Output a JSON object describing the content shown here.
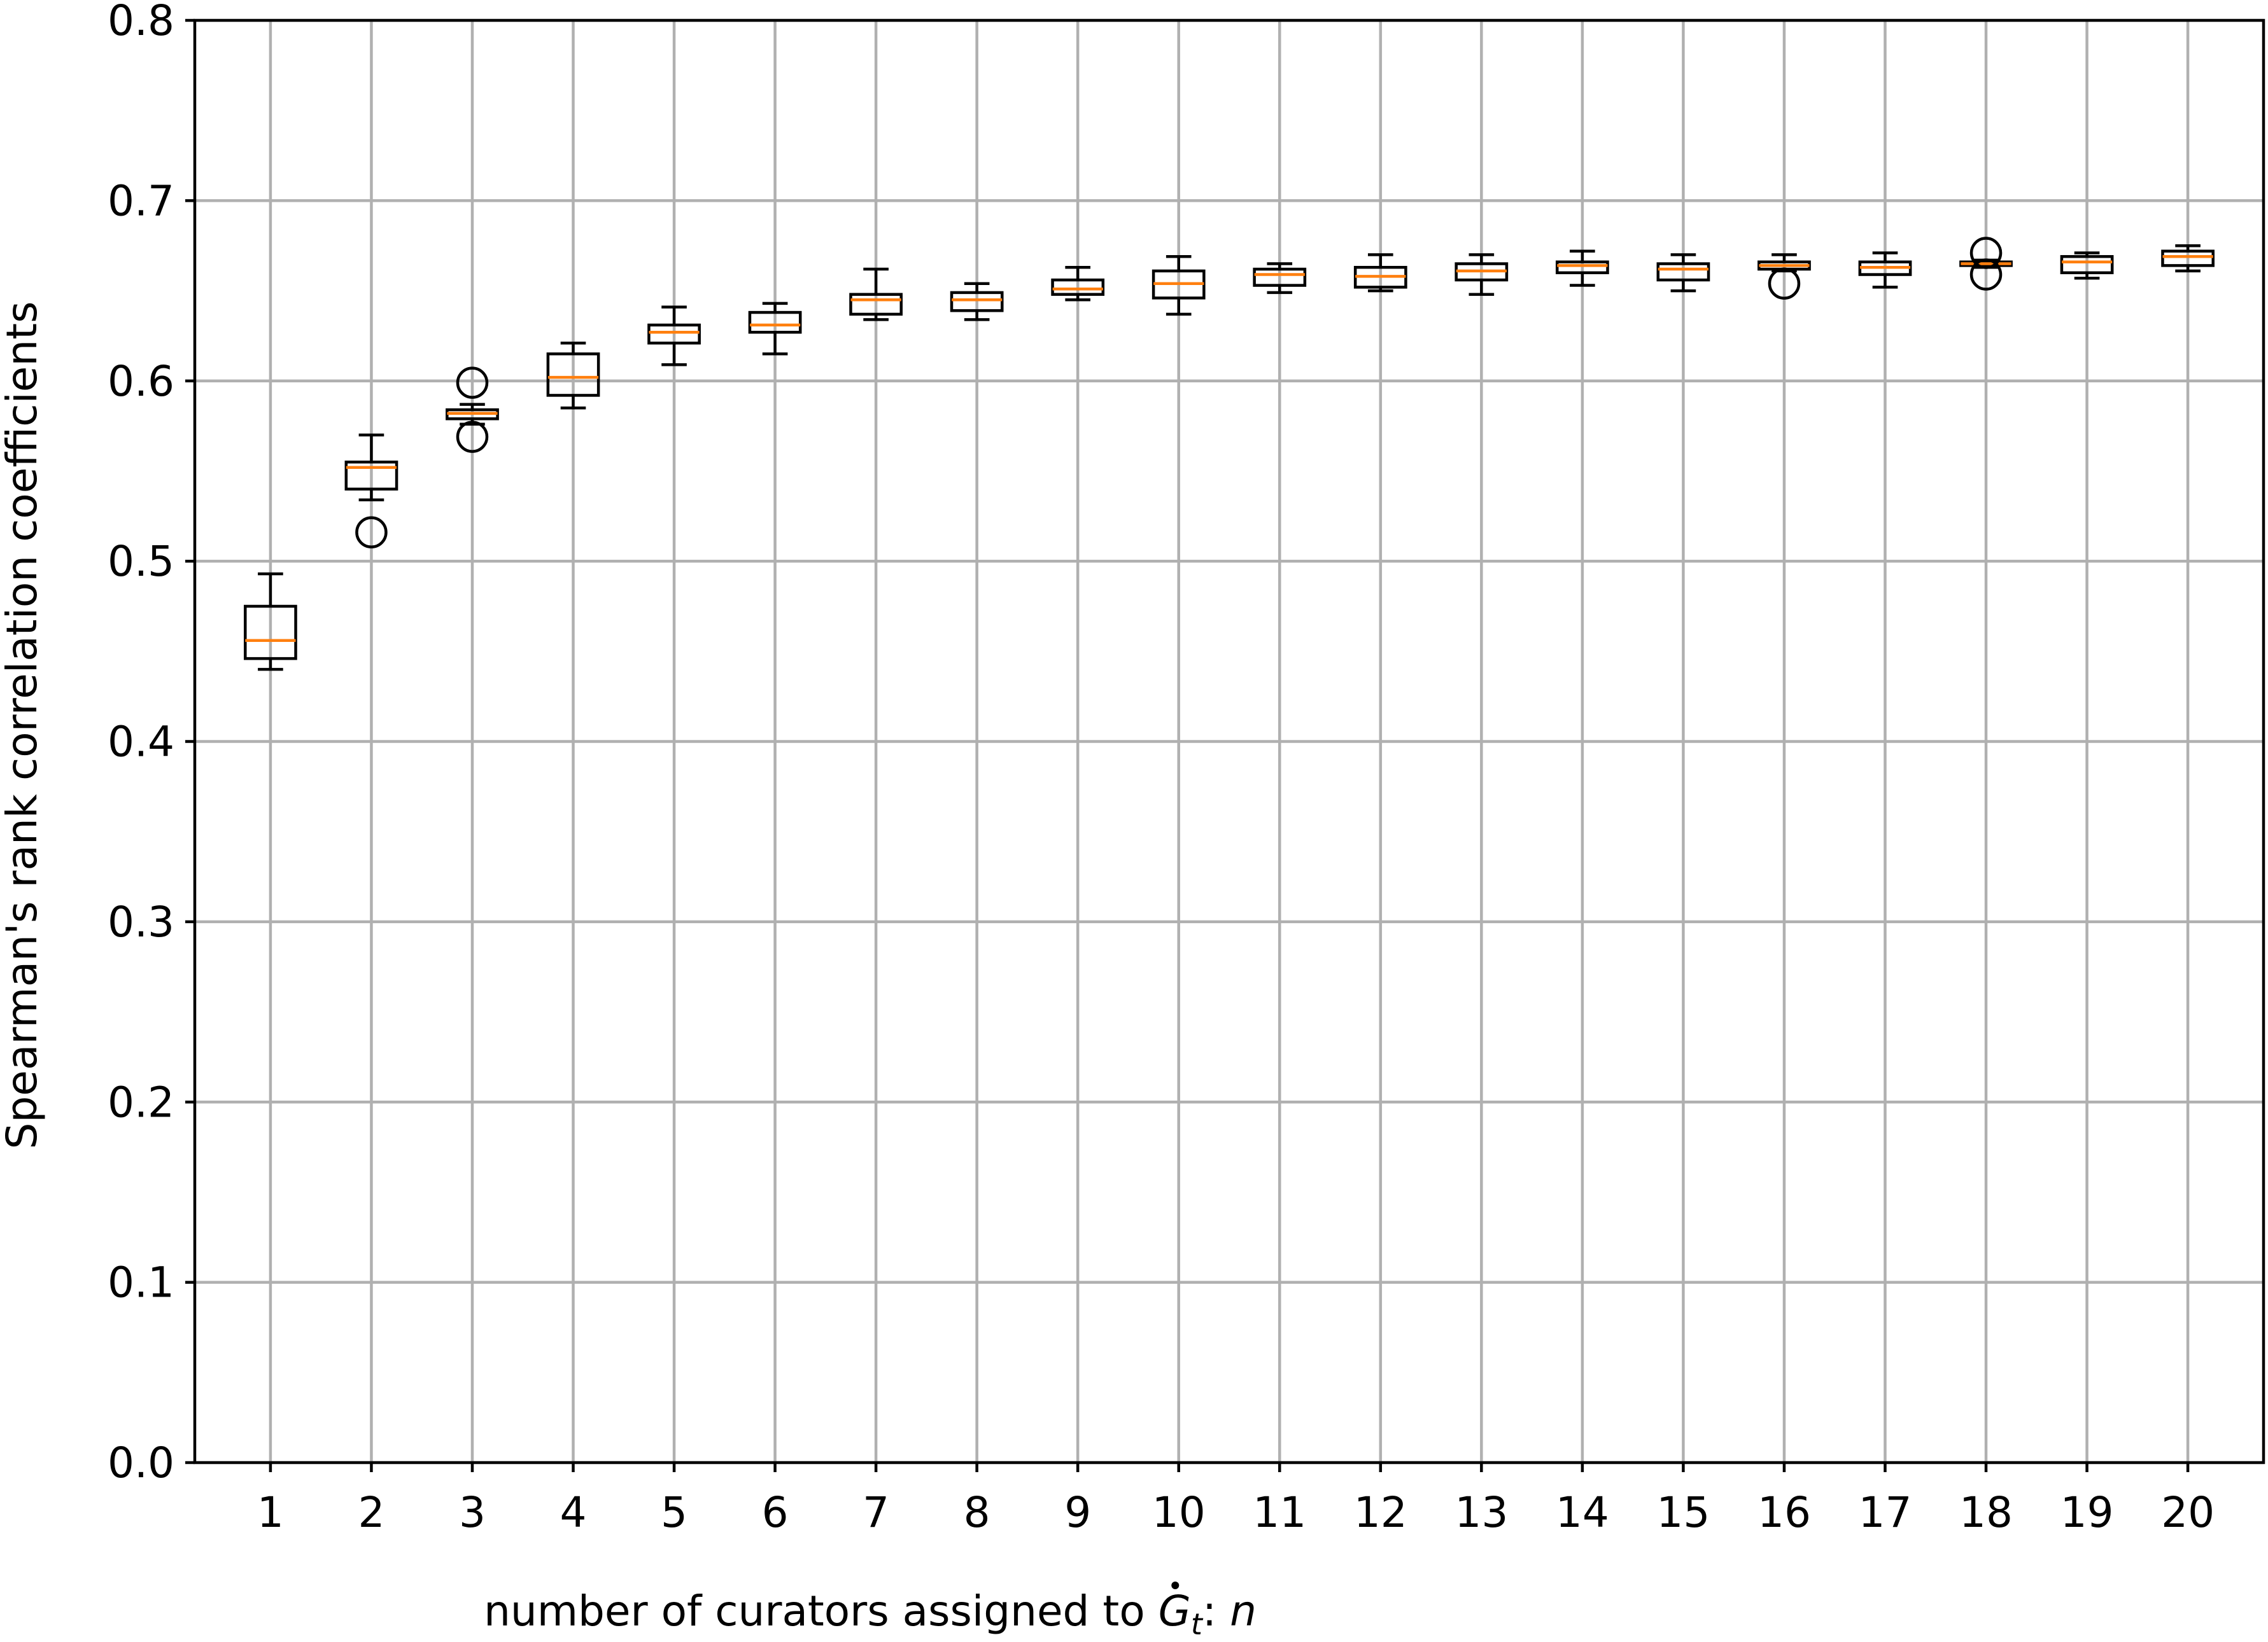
{
  "chart_data": {
    "type": "box",
    "xlabel_prefix": "number of curators assigned to ",
    "xlabel_symbol": "G",
    "xlabel_subscript": "t",
    "xlabel_suffix": ": ",
    "xlabel_var": "n",
    "ylabel": "Spearman's rank correlation coefficients",
    "ylim": [
      0.0,
      0.8
    ],
    "yticks": [
      0.0,
      0.1,
      0.2,
      0.3,
      0.4,
      0.5,
      0.6,
      0.7,
      0.8
    ],
    "ytick_labels": [
      "0.0",
      "0.1",
      "0.2",
      "0.3",
      "0.4",
      "0.5",
      "0.6",
      "0.7",
      "0.8"
    ],
    "categories": [
      "1",
      "2",
      "3",
      "4",
      "5",
      "6",
      "7",
      "8",
      "9",
      "10",
      "11",
      "12",
      "13",
      "14",
      "15",
      "16",
      "17",
      "18",
      "19",
      "20"
    ],
    "grid": true,
    "boxes": [
      {
        "whislo": 0.44,
        "q1": 0.446,
        "med": 0.456,
        "q3": 0.475,
        "whishi": 0.493,
        "fliers": []
      },
      {
        "whislo": 0.534,
        "q1": 0.54,
        "med": 0.552,
        "q3": 0.555,
        "whishi": 0.57,
        "fliers": [
          0.516
        ]
      },
      {
        "whislo": 0.576,
        "q1": 0.579,
        "med": 0.582,
        "q3": 0.584,
        "whishi": 0.587,
        "fliers": [
          0.599,
          0.569
        ]
      },
      {
        "whislo": 0.585,
        "q1": 0.592,
        "med": 0.602,
        "q3": 0.615,
        "whishi": 0.621,
        "fliers": []
      },
      {
        "whislo": 0.609,
        "q1": 0.621,
        "med": 0.627,
        "q3": 0.631,
        "whishi": 0.641,
        "fliers": []
      },
      {
        "whislo": 0.615,
        "q1": 0.627,
        "med": 0.631,
        "q3": 0.638,
        "whishi": 0.643,
        "fliers": []
      },
      {
        "whislo": 0.634,
        "q1": 0.637,
        "med": 0.645,
        "q3": 0.648,
        "whishi": 0.662,
        "fliers": []
      },
      {
        "whislo": 0.634,
        "q1": 0.639,
        "med": 0.645,
        "q3": 0.649,
        "whishi": 0.654,
        "fliers": []
      },
      {
        "whislo": 0.645,
        "q1": 0.648,
        "med": 0.651,
        "q3": 0.656,
        "whishi": 0.663,
        "fliers": []
      },
      {
        "whislo": 0.637,
        "q1": 0.646,
        "med": 0.654,
        "q3": 0.661,
        "whishi": 0.669,
        "fliers": []
      },
      {
        "whislo": 0.649,
        "q1": 0.653,
        "med": 0.659,
        "q3": 0.662,
        "whishi": 0.665,
        "fliers": []
      },
      {
        "whislo": 0.65,
        "q1": 0.652,
        "med": 0.658,
        "q3": 0.663,
        "whishi": 0.67,
        "fliers": []
      },
      {
        "whislo": 0.648,
        "q1": 0.656,
        "med": 0.661,
        "q3": 0.665,
        "whishi": 0.67,
        "fliers": []
      },
      {
        "whislo": 0.653,
        "q1": 0.66,
        "med": 0.664,
        "q3": 0.666,
        "whishi": 0.672,
        "fliers": []
      },
      {
        "whislo": 0.65,
        "q1": 0.656,
        "med": 0.662,
        "q3": 0.665,
        "whishi": 0.67,
        "fliers": []
      },
      {
        "whislo": 0.661,
        "q1": 0.662,
        "med": 0.664,
        "q3": 0.666,
        "whishi": 0.67,
        "fliers": [
          0.654
        ]
      },
      {
        "whislo": 0.652,
        "q1": 0.659,
        "med": 0.663,
        "q3": 0.666,
        "whishi": 0.671,
        "fliers": []
      },
      {
        "whislo": 0.663,
        "q1": 0.664,
        "med": 0.665,
        "q3": 0.666,
        "whishi": 0.667,
        "fliers": [
          0.671,
          0.659
        ]
      },
      {
        "whislo": 0.657,
        "q1": 0.66,
        "med": 0.666,
        "q3": 0.669,
        "whishi": 0.671,
        "fliers": []
      },
      {
        "whislo": 0.661,
        "q1": 0.664,
        "med": 0.669,
        "q3": 0.672,
        "whishi": 0.675,
        "fliers": []
      }
    ]
  }
}
